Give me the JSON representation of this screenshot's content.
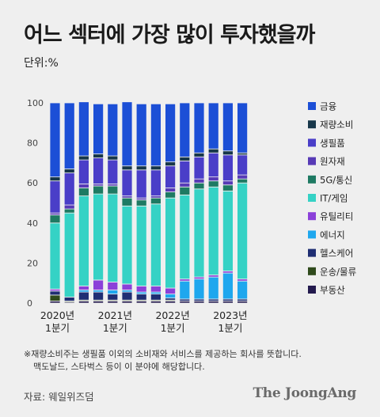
{
  "title": "어느 섹터에 가장 많이 투자했을까",
  "unit_label": "단위:%",
  "note_line1": "※재량소비주는 생필품 이외의 소비재와 서비스를 제공하는 회사를 뜻합니다.",
  "note_line2": "맥도날드, 스타벅스 등이 이 분야에 해당합니다.",
  "source": "자료: 웨일위즈덤",
  "brand": "The JoongAng",
  "chart_data": {
    "type": "bar",
    "stacked": true,
    "ylim": [
      0,
      100
    ],
    "yticks": [
      0,
      20,
      40,
      60,
      80,
      100
    ],
    "grid": false,
    "legend_position": "right",
    "categories": [
      "2020Q1",
      "2020Q2",
      "2020Q3",
      "2020Q4",
      "2021Q1",
      "2021Q2",
      "2021Q3",
      "2021Q4",
      "2022Q1",
      "2022Q2",
      "2022Q3",
      "2022Q4",
      "2023Q1",
      "2023Q2"
    ],
    "x_tick_labels": [
      {
        "index": 0,
        "year": "2020년",
        "quarter": "1분기"
      },
      {
        "index": 4,
        "year": "2021년",
        "quarter": "1분기"
      },
      {
        "index": 8,
        "year": "2022년",
        "quarter": "1분기"
      },
      {
        "index": 12,
        "year": "2023년",
        "quarter": "1분기"
      }
    ],
    "series": [
      {
        "name": "부동산",
        "color": "#231a4e",
        "values": [
          1,
          0.5,
          1,
          1,
          1,
          1,
          1,
          1,
          1,
          1,
          1,
          1,
          1,
          1
        ]
      },
      {
        "name": "운송/물류",
        "color": "#2f4a1c",
        "values": [
          3,
          0.5,
          0.5,
          0.5,
          0.5,
          0.5,
          0.5,
          0.5,
          0.5,
          0,
          0,
          0,
          0,
          0
        ]
      },
      {
        "name": "헬스케어",
        "color": "#1f2e73",
        "values": [
          2,
          2,
          4,
          4,
          3,
          4,
          3,
          3,
          1,
          1,
          1,
          1,
          1,
          1
        ]
      },
      {
        "name": "에너지",
        "color": "#1ea7ee",
        "values": [
          0,
          0,
          1,
          1,
          2,
          1,
          1,
          1,
          2,
          9,
          10,
          11,
          13,
          9
        ]
      },
      {
        "name": "유틸리티",
        "color": "#8b40d9",
        "values": [
          1,
          0,
          2,
          5,
          4,
          3,
          3,
          3,
          3,
          1,
          1,
          1,
          1,
          1
        ]
      },
      {
        "name": "IT/게임",
        "color": "#35d2c5",
        "values": [
          33,
          42,
          45,
          43,
          44,
          39,
          40,
          41,
          45,
          42,
          44,
          44,
          40,
          48
        ]
      },
      {
        "name": "5G/통신",
        "color": "#1e7a63",
        "values": [
          4,
          2,
          4,
          4,
          4,
          4,
          3,
          3,
          3,
          4,
          3,
          3,
          3,
          2
        ]
      },
      {
        "name": "원자재",
        "color": "#573ab6",
        "values": [
          1,
          2,
          2,
          1,
          1,
          1,
          1,
          1,
          2,
          2,
          2,
          2,
          2,
          2
        ]
      },
      {
        "name": "생필품",
        "color": "#4a3ec8",
        "values": [
          16,
          16,
          12,
          13,
          12,
          13,
          14,
          13,
          11,
          11,
          11,
          12,
          13,
          10
        ]
      },
      {
        "name": "재량소비",
        "color": "#17374a",
        "values": [
          2,
          2,
          2,
          2,
          2,
          2,
          2,
          2,
          2,
          2,
          2,
          2,
          2,
          1
        ]
      },
      {
        "name": "금융",
        "color": "#1c4fd6",
        "values": [
          37,
          33,
          27,
          25,
          26,
          32,
          31,
          31,
          29,
          27,
          25,
          23,
          24,
          25
        ]
      }
    ]
  }
}
